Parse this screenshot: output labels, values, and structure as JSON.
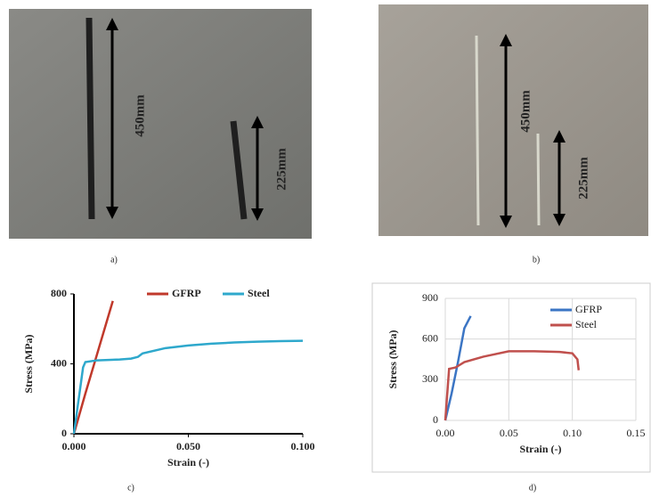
{
  "photos": [
    {
      "label": "a)",
      "annotations": [
        "450mm",
        "225mm"
      ]
    },
    {
      "label": "b)",
      "annotations": [
        "450mm",
        "225mm"
      ]
    }
  ],
  "chart_data": [
    {
      "type": "line",
      "label": "c)",
      "x_label": "Strain (-)",
      "y_label": "Stress (MPa)",
      "xlim": [
        0,
        0.1
      ],
      "xticks": [
        {
          "value": 0,
          "label": "0.000"
        },
        {
          "value": 0.05,
          "label": "0.050"
        },
        {
          "value": 0.1,
          "label": "0.100"
        }
      ],
      "ylim": [
        0,
        800
      ],
      "yticks": [
        0,
        400,
        800
      ],
      "grid": false,
      "legend": "top",
      "series": [
        {
          "name": "GFRP",
          "color": "#c0392b",
          "x": [
            0,
            0.005,
            0.01,
            0.017
          ],
          "values": [
            0,
            230,
            450,
            760
          ]
        },
        {
          "name": "Steel",
          "color": "#2ea8cc",
          "x": [
            0,
            0.004,
            0.005,
            0.01,
            0.02,
            0.025,
            0.028,
            0.03,
            0.04,
            0.05,
            0.06,
            0.07,
            0.08,
            0.09,
            0.1
          ],
          "values": [
            0,
            380,
            410,
            420,
            425,
            430,
            440,
            460,
            490,
            505,
            515,
            522,
            527,
            530,
            532
          ]
        }
      ]
    },
    {
      "type": "line",
      "label": "d)",
      "x_label": "Strain (-)",
      "y_label": "Stress (MPa)",
      "xlim": [
        0,
        0.15
      ],
      "xticks": [
        {
          "value": 0,
          "label": "0.00"
        },
        {
          "value": 0.05,
          "label": "0.05"
        },
        {
          "value": 0.1,
          "label": "0.10"
        },
        {
          "value": 0.15,
          "label": "0.15"
        }
      ],
      "ylim": [
        0,
        900
      ],
      "yticks": [
        0,
        300,
        600,
        900
      ],
      "grid": true,
      "legend": "upper right",
      "series": [
        {
          "name": "GFRP",
          "color": "#3b75c4",
          "x": [
            0,
            0.005,
            0.01,
            0.015,
            0.02
          ],
          "values": [
            0,
            200,
            430,
            680,
            770
          ]
        },
        {
          "name": "Steel",
          "color": "#c0504d",
          "x": [
            0,
            0.003,
            0.008,
            0.015,
            0.03,
            0.05,
            0.07,
            0.09,
            0.1,
            0.104,
            0.105
          ],
          "values": [
            0,
            380,
            390,
            430,
            470,
            510,
            510,
            505,
            495,
            450,
            370
          ]
        }
      ]
    }
  ]
}
